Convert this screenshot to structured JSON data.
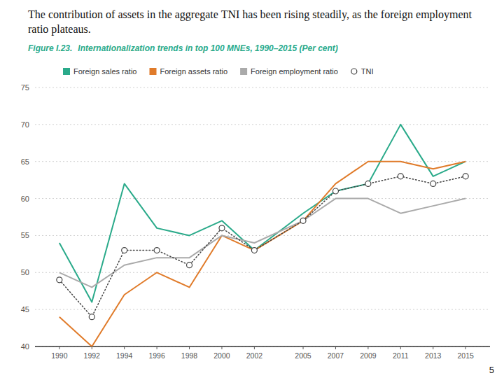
{
  "chart_data": {
    "type": "line",
    "title": "The contribution of assets in the aggregate TNI has been rising steadily, as the foreign employment ratio plateaus.",
    "subtitle": "Internationalization trends in top 100 MNEs, 1990–2015 (Per cent)",
    "annotations": [
      {
        "text": "Figure I.23."
      },
      {
        "text": "5"
      }
    ],
    "x": [
      1990,
      1992,
      1994,
      1996,
      1998,
      2000,
      2002,
      2005,
      2007,
      2009,
      2011,
      2013,
      2015
    ],
    "xlim": [
      1988.5,
      2016.5
    ],
    "xticks": [
      1990,
      1992,
      1994,
      1996,
      1998,
      2000,
      2002,
      2005,
      2007,
      2009,
      2011,
      2013,
      2015
    ],
    "ylim": [
      40,
      75
    ],
    "yticks": [
      40,
      45,
      50,
      55,
      60,
      65,
      70,
      75
    ],
    "grid": true,
    "legend": "top",
    "series": [
      {
        "name": "Foreign sales ratio",
        "color": "#2aaa8a",
        "values": [
          54,
          46,
          62,
          56,
          55,
          57,
          53,
          58,
          61,
          62,
          70,
          63,
          65
        ]
      },
      {
        "name": "Foreign assets ratio",
        "color": "#e07b2a",
        "values": [
          44,
          40,
          47,
          50,
          48,
          55,
          53,
          57,
          62,
          65,
          65,
          64,
          65
        ]
      },
      {
        "name": "Foreign employment ratio",
        "color": "#aaaaaa",
        "values": [
          50,
          48,
          51,
          52,
          52,
          55,
          54,
          57,
          60,
          60,
          58,
          59,
          60
        ]
      },
      {
        "name": "TNI",
        "color": "#444444",
        "line_style": "dotted",
        "marker": "circle",
        "values": [
          49,
          44,
          53,
          53,
          51,
          56,
          53,
          57,
          61,
          62,
          63,
          62,
          63
        ]
      }
    ]
  }
}
